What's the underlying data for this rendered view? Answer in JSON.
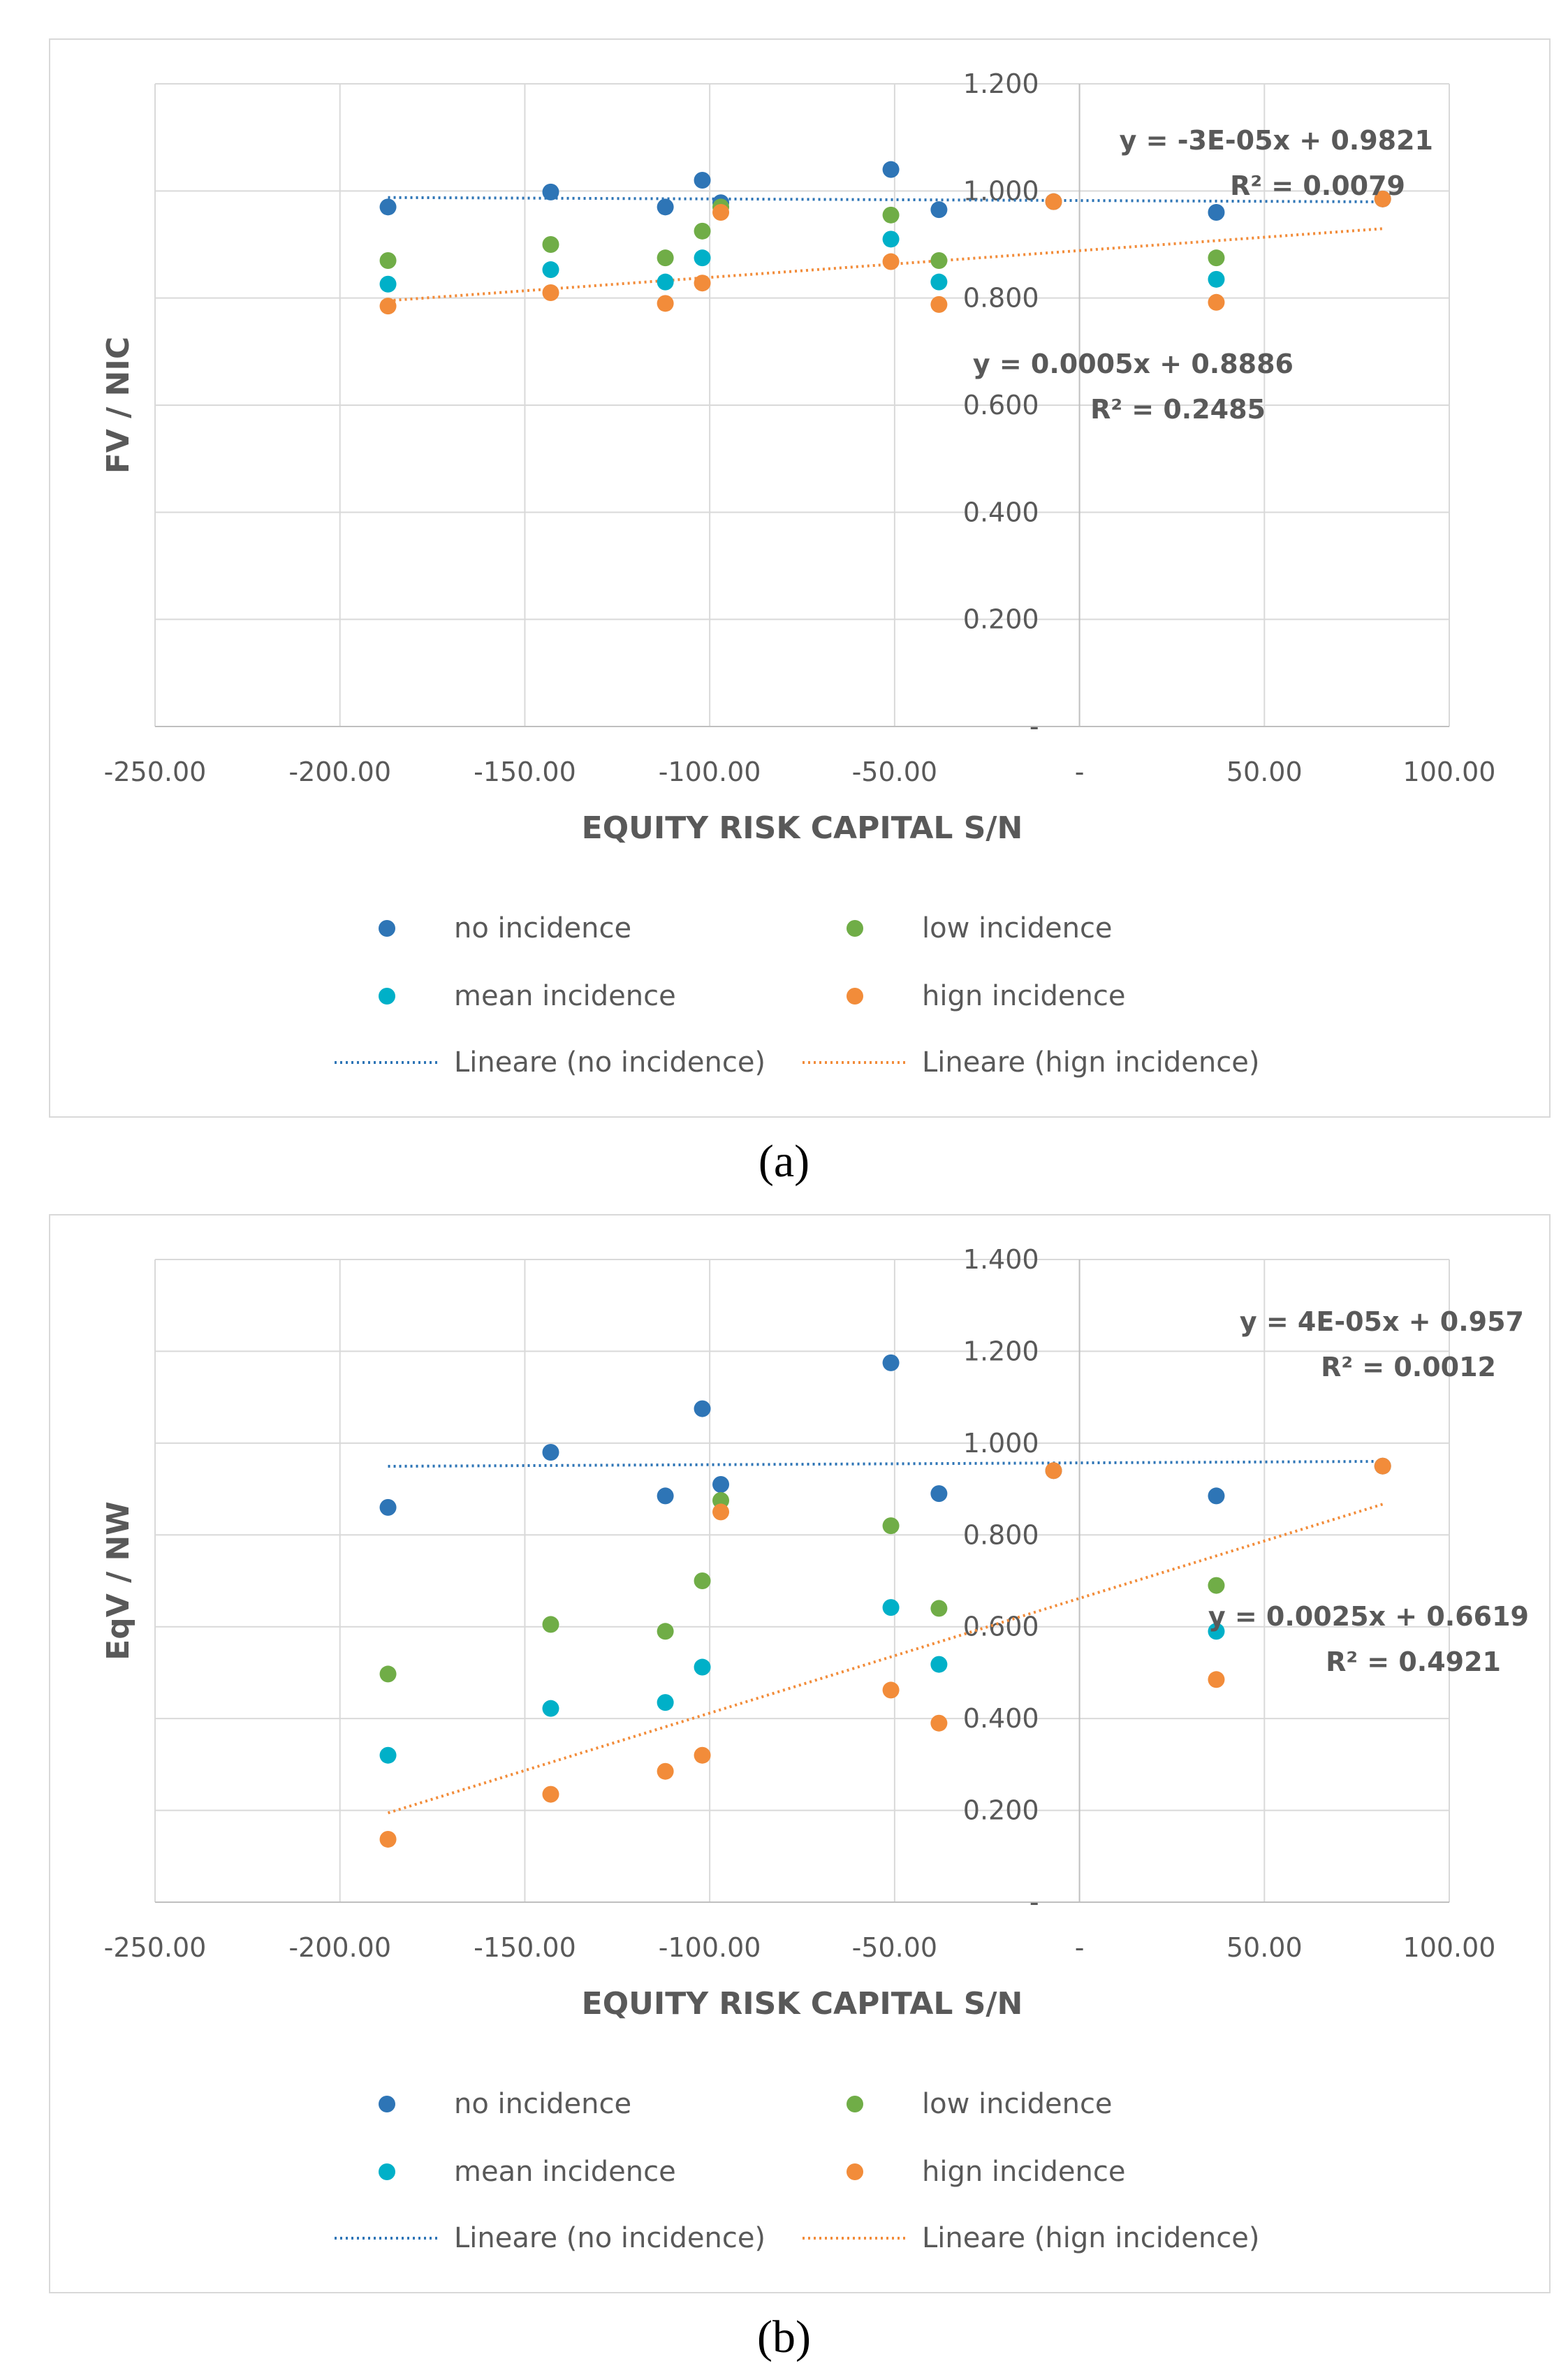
{
  "captions": {
    "a": "(a)",
    "b": "(b)"
  },
  "legend": {
    "items": [
      {
        "label": "no incidence",
        "color": "#2E75B6",
        "kind": "point"
      },
      {
        "label": "low incidence",
        "color": "#70AD47",
        "kind": "point"
      },
      {
        "label": "mean incidence",
        "color": "#00B0C8",
        "kind": "point"
      },
      {
        "label": "hign incidence",
        "color": "#F28C3A",
        "kind": "point"
      },
      {
        "label": "Lineare (no incidence)",
        "color": "#2E75B6",
        "kind": "line"
      },
      {
        "label": "Lineare (hign incidence)",
        "color": "#F28C3A",
        "kind": "line"
      }
    ]
  },
  "chart_data": [
    {
      "type": "scatter",
      "panel": "a",
      "title": "",
      "xlabel": "EQUITY RISK CAPITAL S/N",
      "ylabel": "FV / NIC",
      "xlim": [
        -250,
        100
      ],
      "ylim": [
        0,
        1.2
      ],
      "x_tick_labels": [
        "-250.00",
        "-200.00",
        "-150.00",
        "-100.00",
        "-50.00",
        "-",
        "50.00",
        "100.00"
      ],
      "y_tick_labels": [
        "-",
        "0.200",
        "0.400",
        "0.600",
        "0.800",
        "1.000",
        "1.200"
      ],
      "grid": true,
      "legend_position": "bottom",
      "series": [
        {
          "name": "no incidence",
          "color": "#2E75B6",
          "x": [
            -187,
            -143,
            -112,
            -102,
            -97,
            -51,
            -38,
            -7,
            37,
            82
          ],
          "y": [
            0.97,
            0.998,
            0.97,
            1.02,
            0.978,
            1.04,
            0.965,
            0.98,
            0.96,
            0.985
          ]
        },
        {
          "name": "low incidence",
          "color": "#70AD47",
          "x": [
            -187,
            -143,
            -112,
            -102,
            -97,
            -51,
            -38,
            37
          ],
          "y": [
            0.87,
            0.9,
            0.875,
            0.925,
            0.97,
            0.955,
            0.87,
            0.875
          ]
        },
        {
          "name": "mean incidence",
          "color": "#00B0C8",
          "x": [
            -187,
            -143,
            -112,
            -102,
            -51,
            -38,
            37
          ],
          "y": [
            0.826,
            0.853,
            0.83,
            0.875,
            0.91,
            0.83,
            0.835
          ]
        },
        {
          "name": "hign incidence",
          "color": "#F28C3A",
          "x": [
            -187,
            -143,
            -112,
            -102,
            -97,
            -51,
            -38,
            -7,
            37,
            82
          ],
          "y": [
            0.785,
            0.81,
            0.79,
            0.828,
            0.96,
            0.868,
            0.788,
            0.98,
            0.792,
            0.985
          ]
        }
      ],
      "trendlines": [
        {
          "name": "Lineare (no incidence)",
          "color": "#2E75B6",
          "slope": -3e-05,
          "intercept": 0.9821,
          "x_range": [
            -187,
            82
          ]
        },
        {
          "name": "Lineare (hign incidence)",
          "color": "#F28C3A",
          "slope": 0.0005,
          "intercept": 0.8886,
          "x_range": [
            -187,
            82
          ]
        }
      ],
      "annotations": [
        {
          "series": "no incidence",
          "equation": "y = -3E-05x + 0.9821",
          "r2": "R² = 0.0079"
        },
        {
          "series": "hign incidence",
          "equation": "y = 0.0005x  + 0.8886",
          "r2": "R² = 0.2485"
        }
      ]
    },
    {
      "type": "scatter",
      "panel": "b",
      "title": "",
      "xlabel": "EQUITY RISK CAPITAL S/N",
      "ylabel": "EqV / NW",
      "xlim": [
        -250,
        100
      ],
      "ylim": [
        0,
        1.4
      ],
      "x_tick_labels": [
        "-250.00",
        "-200.00",
        "-150.00",
        "-100.00",
        "-50.00",
        "-",
        "50.00",
        "100.00"
      ],
      "y_tick_labels": [
        "-",
        "0.200",
        "0.400",
        "0.600",
        "0.800",
        "1.000",
        "1.200",
        "1.400"
      ],
      "grid": true,
      "legend_position": "bottom",
      "series": [
        {
          "name": "no incidence",
          "color": "#2E75B6",
          "x": [
            -187,
            -143,
            -112,
            -102,
            -97,
            -51,
            -38,
            -7,
            37,
            82
          ],
          "y": [
            0.86,
            0.98,
            0.885,
            1.075,
            0.91,
            1.175,
            0.89,
            0.94,
            0.885,
            0.95
          ]
        },
        {
          "name": "low incidence",
          "color": "#70AD47",
          "x": [
            -187,
            -143,
            -112,
            -102,
            -97,
            -51,
            -38,
            37
          ],
          "y": [
            0.497,
            0.605,
            0.59,
            0.7,
            0.875,
            0.82,
            0.64,
            0.69
          ]
        },
        {
          "name": "mean incidence",
          "color": "#00B0C8",
          "x": [
            -187,
            -143,
            -112,
            -102,
            -51,
            -38,
            37
          ],
          "y": [
            0.32,
            0.422,
            0.435,
            0.512,
            0.642,
            0.518,
            0.59
          ]
        },
        {
          "name": "hign incidence",
          "color": "#F28C3A",
          "x": [
            -187,
            -143,
            -112,
            -102,
            -97,
            -51,
            -38,
            -7,
            37,
            82
          ],
          "y": [
            0.137,
            0.235,
            0.285,
            0.32,
            0.85,
            0.462,
            0.39,
            0.94,
            0.485,
            0.95
          ]
        }
      ],
      "trendlines": [
        {
          "name": "Lineare (no incidence)",
          "color": "#2E75B6",
          "slope": 4e-05,
          "intercept": 0.957,
          "x_range": [
            -187,
            82
          ]
        },
        {
          "name": "Lineare (hign incidence)",
          "color": "#F28C3A",
          "slope": 0.0025,
          "intercept": 0.6619,
          "x_range": [
            -187,
            82
          ]
        }
      ],
      "annotations": [
        {
          "series": "no incidence",
          "equation": "y = 4E-05x + 0.957",
          "r2": "R² = 0.0012"
        },
        {
          "series": "hign incidence",
          "equation": "y = 0.0025x  + 0.6619",
          "r2": "R² = 0.4921"
        }
      ]
    }
  ]
}
